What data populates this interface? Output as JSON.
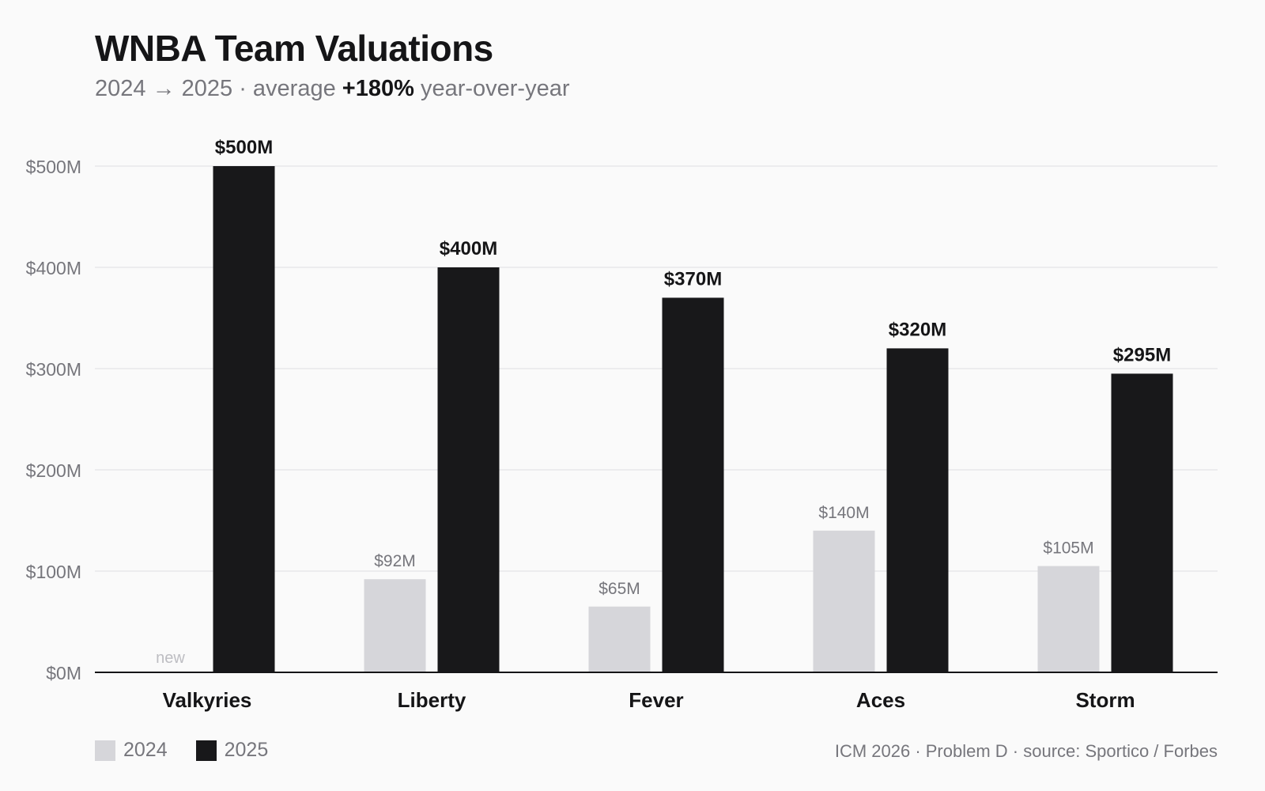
{
  "title": "WNBA Team Valuations",
  "subtitle": {
    "prefix": "2024 → 2025 · average ",
    "highlight": "+180%",
    "suffix": " year-over-year"
  },
  "source": "ICM 2026 · Problem D · source: Sportico / Forbes",
  "colors": {
    "series_2024": "#d6d6da",
    "series_2025": "#18181a",
    "grid": "#e8e8ea",
    "axis": "#151517",
    "muted_text": "#76767c",
    "new_label": "#bdbdc2"
  },
  "chart_data": {
    "type": "bar",
    "categories": [
      "Valkyries",
      "Liberty",
      "Fever",
      "Aces",
      "Storm"
    ],
    "series": [
      {
        "name": "2024",
        "values": [
          null,
          92,
          65,
          140,
          105
        ],
        "labels": [
          "new",
          "$92M",
          "$65M",
          "$140M",
          "$105M"
        ]
      },
      {
        "name": "2025",
        "values": [
          500,
          400,
          370,
          320,
          295
        ],
        "labels": [
          "$500M",
          "$400M",
          "$370M",
          "$320M",
          "$295M"
        ]
      }
    ],
    "ylim": [
      0,
      500
    ],
    "yticks": [
      0,
      100,
      200,
      300,
      400,
      500
    ],
    "ytick_labels": [
      "$0M",
      "$100M",
      "$200M",
      "$300M",
      "$400M",
      "$500M"
    ],
    "grid": true,
    "legend_position": "bottom-left"
  }
}
